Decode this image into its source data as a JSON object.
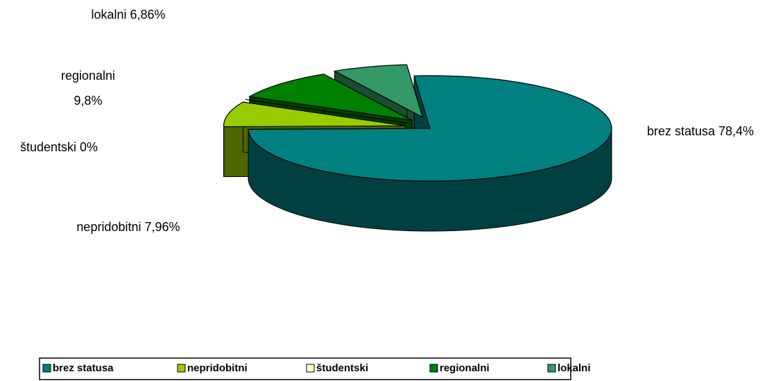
{
  "chart_data": {
    "type": "pie3d",
    "categories": [
      "brez statusa",
      "nepridobitni",
      "študentski",
      "regionalni",
      "lokalni"
    ],
    "values": [
      78.4,
      7.96,
      0,
      9.8,
      6.86
    ],
    "value_labels": [
      "78,4%",
      "7,96%",
      "0%",
      "9,8%",
      "6,86%"
    ],
    "colors": [
      "#008080",
      "#99cc00",
      "#ffffcc",
      "#008000",
      "#339966"
    ],
    "legend": "bottom"
  }
}
